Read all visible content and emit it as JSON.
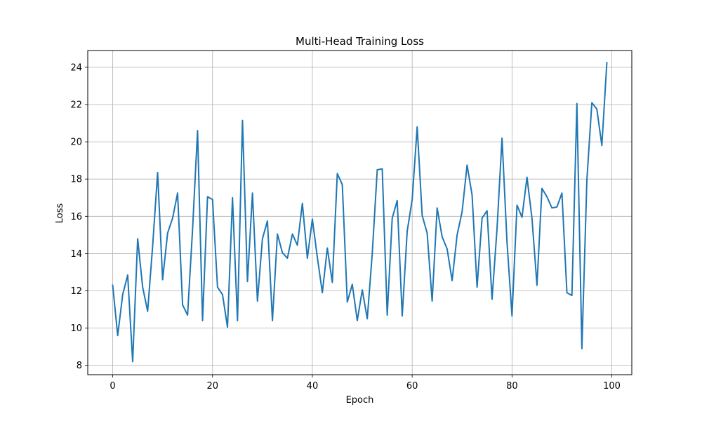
{
  "chart_data": {
    "type": "line",
    "title": "Multi-Head Training Loss",
    "xlabel": "Epoch",
    "ylabel": "Loss",
    "xlim": [
      -5,
      104
    ],
    "ylim": [
      7.5,
      24.9
    ],
    "xticks": [
      0,
      20,
      40,
      60,
      80,
      100
    ],
    "yticks": [
      8,
      10,
      12,
      14,
      16,
      18,
      20,
      22,
      24
    ],
    "grid": true,
    "line_color": "#1f77b4",
    "series": [
      {
        "x": [
          0,
          1,
          2,
          3,
          4,
          5,
          6,
          7,
          8,
          9,
          10,
          11,
          12,
          13,
          14,
          15,
          16,
          17,
          18,
          19,
          20,
          21,
          22,
          23,
          24,
          25,
          26,
          27,
          28,
          29,
          30,
          31,
          32,
          33,
          34,
          35,
          36,
          37,
          38,
          39,
          40,
          41,
          42,
          43,
          44,
          45,
          46,
          47,
          48,
          49,
          50,
          51,
          52,
          53,
          54,
          55,
          56,
          57,
          58,
          59,
          60,
          61,
          62,
          63,
          64,
          65,
          66,
          67,
          68,
          69,
          70,
          71,
          72,
          73,
          74,
          75,
          76,
          77,
          78,
          79,
          80,
          81,
          82,
          83,
          84,
          85,
          86,
          87,
          88,
          89,
          90,
          91,
          92,
          93,
          94,
          95,
          96,
          97,
          98,
          99
        ],
        "values": [
          12.3,
          9.6,
          11.8,
          12.85,
          8.2,
          14.8,
          12.2,
          10.9,
          14.4,
          18.35,
          12.6,
          15.1,
          15.9,
          17.25,
          11.25,
          10.7,
          15.3,
          20.6,
          10.4,
          17.05,
          16.9,
          12.2,
          11.8,
          10.05,
          17.0,
          10.4,
          21.15,
          12.5,
          17.25,
          11.45,
          14.8,
          15.75,
          10.4,
          15.05,
          14.05,
          13.75,
          15.05,
          14.45,
          16.7,
          13.75,
          15.85,
          13.8,
          11.9,
          14.3,
          12.45,
          18.3,
          17.7,
          11.4,
          12.35,
          10.4,
          12.05,
          10.5,
          14.0,
          18.5,
          18.55,
          10.7,
          15.9,
          16.85,
          10.65,
          15.2,
          16.9,
          20.8,
          16.05,
          15.1,
          11.45,
          16.45,
          14.9,
          14.25,
          12.55,
          15.0,
          16.25,
          18.75,
          17.15,
          12.2,
          15.9,
          16.3,
          11.55,
          15.35,
          20.2,
          14.6,
          10.65,
          16.6,
          15.95,
          18.1,
          15.9,
          12.3,
          17.5,
          17.05,
          16.45,
          16.5,
          17.25,
          11.9,
          11.75,
          22.05,
          8.9,
          17.95,
          22.1,
          21.75,
          19.8,
          24.25
        ]
      }
    ]
  }
}
